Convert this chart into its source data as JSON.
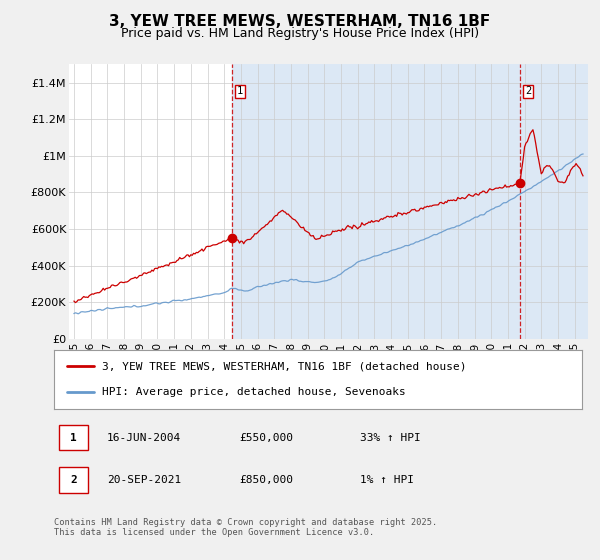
{
  "title": "3, YEW TREE MEWS, WESTERHAM, TN16 1BF",
  "subtitle": "Price paid vs. HM Land Registry's House Price Index (HPI)",
  "ylabel_ticks": [
    "£0",
    "£200K",
    "£400K",
    "£600K",
    "£800K",
    "£1M",
    "£1.2M",
    "£1.4M"
  ],
  "ylim": [
    0,
    1500000
  ],
  "xlim_start": 1994.7,
  "xlim_end": 2025.8,
  "sale1_x": 2004.46,
  "sale1_y": 550000,
  "sale1_label": "1",
  "sale2_x": 2021.72,
  "sale2_y": 850000,
  "sale2_label": "2",
  "red_line_color": "#cc0000",
  "blue_line_color": "#6699cc",
  "background_color": "#f0f0f0",
  "plot_bg_color": "#ffffff",
  "plot_shade_color": "#dce8f5",
  "grid_color": "#cccccc",
  "legend_line1": "3, YEW TREE MEWS, WESTERHAM, TN16 1BF (detached house)",
  "legend_line2": "HPI: Average price, detached house, Sevenoaks",
  "annotation1_date": "16-JUN-2004",
  "annotation1_price": "£550,000",
  "annotation1_hpi": "33% ↑ HPI",
  "annotation2_date": "20-SEP-2021",
  "annotation2_price": "£850,000",
  "annotation2_hpi": "1% ↑ HPI",
  "footer": "Contains HM Land Registry data © Crown copyright and database right 2025.\nThis data is licensed under the Open Government Licence v3.0.",
  "title_fontsize": 11,
  "subtitle_fontsize": 9,
  "tick_fontsize": 8,
  "legend_fontsize": 8,
  "annotation_fontsize": 8
}
